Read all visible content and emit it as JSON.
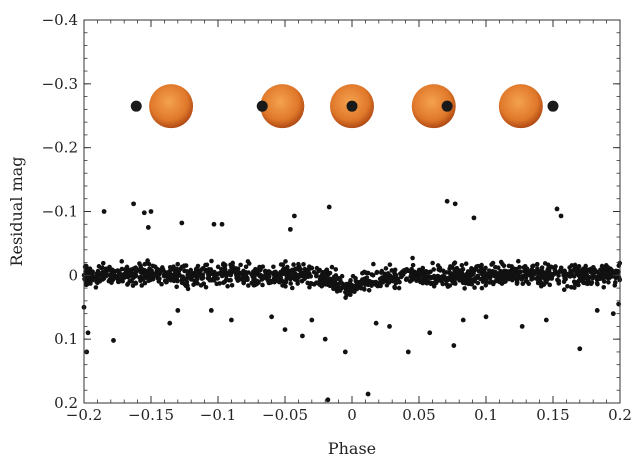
{
  "chart_data": {
    "type": "scatter",
    "title": "",
    "xlabel": "Phase",
    "ylabel": "Residual mag",
    "xlim": [
      -0.2,
      0.2
    ],
    "ylim": [
      0.2,
      -0.4
    ],
    "y_inverted": true,
    "grid": false,
    "x_ticks": [
      -0.2,
      -0.15,
      -0.1,
      -0.05,
      0,
      0.05,
      0.1,
      0.15,
      0.2
    ],
    "x_tick_labels": [
      "−0.2",
      "−0.15",
      "−0.1",
      "−0.05",
      "0",
      "0.05",
      "0.1",
      "0.15",
      "0.2"
    ],
    "y_ticks": [
      -0.4,
      -0.3,
      -0.2,
      -0.1,
      0,
      0.1,
      0.2
    ],
    "y_tick_labels": [
      "−0.4",
      "−0.3",
      "−0.2",
      "−0.1",
      "0",
      "0.1",
      "0.2"
    ],
    "annotation_illustration": {
      "description_free": true,
      "y": -0.265,
      "planet_color": "#1a1a1a",
      "star_color": "#e0782a",
      "pairs": [
        {
          "star_x": -0.135,
          "planet_x": -0.161
        },
        {
          "star_x": -0.052,
          "planet_x": -0.067
        },
        {
          "star_x": 0.0,
          "planet_x": 0.0
        },
        {
          "star_x": 0.061,
          "planet_x": 0.071
        },
        {
          "star_x": 0.126,
          "planet_x": 0.15
        }
      ]
    },
    "series": [
      {
        "marker_color": "#111111",
        "band_center": 0.0,
        "band_scatter": 0.012,
        "dip": {
          "depth": 0.015,
          "x_min": -0.03,
          "x_max": 0.03
        },
        "n_band_points": 1400,
        "outliers": [
          {
            "x": -0.185,
            "y": -0.1
          },
          {
            "x": -0.163,
            "y": -0.112
          },
          {
            "x": -0.155,
            "y": -0.098
          },
          {
            "x": -0.15,
            "y": -0.1
          },
          {
            "x": -0.152,
            "y": -0.075
          },
          {
            "x": -0.127,
            "y": -0.082
          },
          {
            "x": -0.103,
            "y": -0.08
          },
          {
            "x": -0.097,
            "y": -0.08
          },
          {
            "x": -0.043,
            "y": -0.093
          },
          {
            "x": -0.046,
            "y": -0.072
          },
          {
            "x": -0.017,
            "y": -0.107
          },
          {
            "x": 0.071,
            "y": -0.116
          },
          {
            "x": 0.077,
            "y": -0.112
          },
          {
            "x": 0.091,
            "y": -0.09
          },
          {
            "x": 0.153,
            "y": -0.104
          },
          {
            "x": 0.156,
            "y": -0.093
          },
          {
            "x": -0.2,
            "y": 0.05
          },
          {
            "x": -0.198,
            "y": 0.12
          },
          {
            "x": -0.197,
            "y": 0.09
          },
          {
            "x": -0.178,
            "y": 0.102
          },
          {
            "x": -0.136,
            "y": 0.075
          },
          {
            "x": -0.13,
            "y": 0.055
          },
          {
            "x": -0.105,
            "y": 0.055
          },
          {
            "x": -0.09,
            "y": 0.07
          },
          {
            "x": -0.06,
            "y": 0.065
          },
          {
            "x": -0.05,
            "y": 0.085
          },
          {
            "x": -0.037,
            "y": 0.095
          },
          {
            "x": -0.03,
            "y": 0.07
          },
          {
            "x": -0.02,
            "y": 0.1
          },
          {
            "x": -0.018,
            "y": 0.195
          },
          {
            "x": -0.005,
            "y": 0.12
          },
          {
            "x": 0.012,
            "y": 0.186
          },
          {
            "x": 0.018,
            "y": 0.075
          },
          {
            "x": 0.028,
            "y": 0.08
          },
          {
            "x": 0.042,
            "y": 0.12
          },
          {
            "x": 0.058,
            "y": 0.09
          },
          {
            "x": 0.076,
            "y": 0.11
          },
          {
            "x": 0.083,
            "y": 0.07
          },
          {
            "x": 0.1,
            "y": 0.065
          },
          {
            "x": 0.127,
            "y": 0.08
          },
          {
            "x": 0.145,
            "y": 0.07
          },
          {
            "x": 0.17,
            "y": 0.115
          },
          {
            "x": 0.183,
            "y": 0.055
          },
          {
            "x": 0.195,
            "y": 0.06
          },
          {
            "x": 0.199,
            "y": 0.045
          }
        ]
      }
    ]
  }
}
